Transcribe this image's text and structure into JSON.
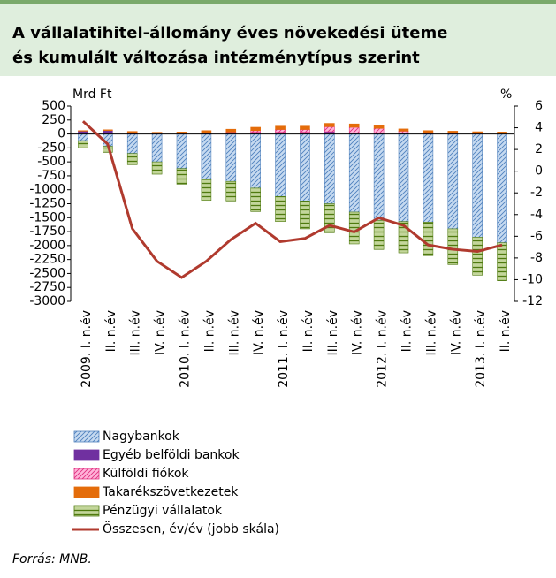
{
  "chart_data": {
    "type": "bar",
    "title": [
      "A vállalatihitel-állomány éves növekedési üteme",
      "és kumulált változása intézménytípus szerint"
    ],
    "y_label": "Mrd Ft",
    "y2_label": "%",
    "source": "Forrás: MNB.",
    "categories": [
      "2009. I. n.év",
      "II. n.év",
      "III. n.év",
      "IV. n.év",
      "2010. I. n.év",
      "II. n.év",
      "III. n.év",
      "IV. n.év",
      "2011. I. n.év",
      "II. n.év",
      "III. n.év",
      "IV. n.év",
      "2012. I. n.év",
      "II. n.év",
      "III. n.év",
      "IV. n.év",
      "2013. I. n.év",
      "II. n.év"
    ],
    "series": [
      {
        "name": "Nagybankok",
        "type": "bar",
        "pattern": "diagonal",
        "color": "#c6daf0",
        "line_color": "#4f81bd",
        "values": [
          -120,
          -220,
          -350,
          -500,
          -620,
          -820,
          -850,
          -970,
          -1120,
          -1200,
          -1250,
          -1400,
          -1550,
          -1570,
          -1580,
          -1700,
          -1850,
          -1950
        ]
      },
      {
        "name": "Egyéb belföldi bankok",
        "type": "bar",
        "pattern": "solid",
        "color": "#7030a0",
        "line_color": "#7030a0",
        "values": [
          50,
          60,
          30,
          10,
          10,
          20,
          25,
          30,
          30,
          30,
          40,
          20,
          20,
          20,
          10,
          10,
          5,
          5
        ]
      },
      {
        "name": "Külföldi fiókok",
        "type": "bar",
        "pattern": "diagonal",
        "color": "#ffb3d9",
        "line_color": "#e0307f",
        "values": [
          0,
          0,
          0,
          0,
          0,
          0,
          10,
          30,
          50,
          50,
          90,
          100,
          80,
          30,
          20,
          10,
          5,
          0
        ]
      },
      {
        "name": "Takarékszövetkezetek",
        "type": "bar",
        "pattern": "solid",
        "color": "#e46c0a",
        "line_color": "#e46c0a",
        "values": [
          10,
          15,
          15,
          20,
          25,
          40,
          50,
          60,
          60,
          60,
          60,
          60,
          50,
          40,
          30,
          30,
          30,
          30
        ]
      },
      {
        "name": "Pénzügyi vállalatok",
        "type": "bar",
        "pattern": "horizontal",
        "color": "#c3d69b",
        "line_color": "#4f7a0f",
        "values": [
          -130,
          -110,
          -200,
          -220,
          -280,
          -370,
          -350,
          -420,
          -450,
          -500,
          -520,
          -570,
          -520,
          -560,
          -600,
          -640,
          -680,
          -680
        ]
      },
      {
        "name": "Összesen, év/év (jobb skála)",
        "type": "line",
        "axis": "y2",
        "color": "#b03a2e",
        "values": [
          4.6,
          2.5,
          -5.3,
          -8.3,
          -9.8,
          -8.3,
          -6.3,
          -4.8,
          -6.5,
          -6.2,
          -5.0,
          -5.6,
          -4.3,
          -5.0,
          -6.8,
          -7.2,
          -7.4,
          -6.8
        ]
      }
    ],
    "ylim": [
      -3000,
      500
    ],
    "yticks": [
      500,
      250,
      0,
      -250,
      -500,
      -750,
      -1000,
      -1250,
      -1500,
      -1750,
      -2000,
      -2250,
      -2500,
      -2750,
      -3000
    ],
    "y2lim": [
      -12,
      6
    ],
    "y2ticks": [
      6,
      4,
      2,
      0,
      -2,
      -4,
      -6,
      -8,
      -10,
      -12
    ],
    "grid": false
  }
}
